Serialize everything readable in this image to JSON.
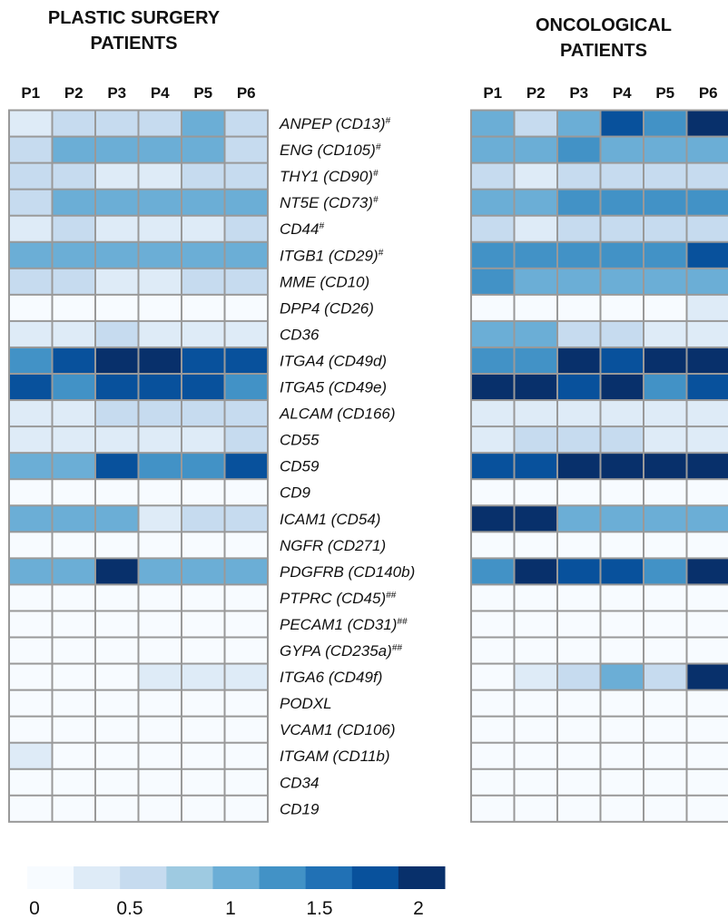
{
  "panels": [
    {
      "title_line1": "PLASTIC SURGERY",
      "title_line2": "PATIENTS"
    },
    {
      "title_line1": "ONCOLOGICAL",
      "title_line2": "PATIENTS"
    }
  ],
  "chart_data": [
    {
      "type": "heatmap",
      "title": "PLASTIC SURGERY PATIENTS",
      "columns": [
        "P1",
        "P2",
        "P3",
        "P4",
        "P5",
        "P6"
      ],
      "rows": [
        "ANPEP (CD13)",
        "ENG (CD105)",
        "THY1 (CD90)",
        "NT5E (CD73)",
        "CD44",
        "ITGB1 (CD29)",
        "MME (CD10)",
        "DPP4 (CD26)",
        "CD36",
        "ITGA4 (CD49d)",
        "ITGA5 (CD49e)",
        "ALCAM (CD166)",
        "CD55",
        "CD59",
        "CD9",
        "ICAM1 (CD54)",
        "NGFR (CD271)",
        "PDGFRB (CD140b)",
        "PTPRC (CD45)",
        "PECAM1 (CD31)",
        "GYPA (CD235a)",
        "ITGA6 (CD49f)",
        "PODXL",
        "VCAM1 (CD106)",
        "ITGAM (CD11b)",
        "CD34",
        "CD19"
      ],
      "row_superscripts": [
        "#",
        "#",
        "#",
        "#",
        "#",
        "#",
        "",
        "",
        "",
        "",
        "",
        "",
        "",
        "",
        "",
        "",
        "",
        "",
        "##",
        "##",
        "##",
        "",
        "",
        "",
        "",
        "",
        ""
      ],
      "values": [
        [
          0.3,
          0.6,
          0.6,
          0.6,
          0.9,
          0.6
        ],
        [
          0.6,
          1.1,
          1.1,
          1.1,
          0.9,
          0.6
        ],
        [
          0.6,
          0.6,
          0.3,
          0.3,
          0.6,
          0.6
        ],
        [
          0.6,
          0.9,
          1.1,
          0.9,
          1.1,
          0.9
        ],
        [
          0.3,
          0.6,
          0.3,
          0.3,
          0.3,
          0.6
        ],
        [
          0.9,
          1.1,
          1.1,
          1.1,
          1.1,
          1.1
        ],
        [
          0.6,
          0.6,
          0.3,
          0.3,
          0.6,
          0.6
        ],
        [
          0.1,
          0.1,
          0.1,
          0.1,
          0.1,
          0.1
        ],
        [
          0.3,
          0.3,
          0.6,
          0.3,
          0.3,
          0.3
        ],
        [
          1.3,
          1.6,
          2.0,
          1.8,
          1.6,
          1.6
        ],
        [
          1.6,
          1.3,
          1.6,
          1.6,
          1.6,
          1.3
        ],
        [
          0.3,
          0.3,
          0.6,
          0.6,
          0.6,
          0.6
        ],
        [
          0.3,
          0.3,
          0.3,
          0.3,
          0.3,
          0.6
        ],
        [
          1.1,
          1.1,
          1.6,
          1.3,
          1.3,
          1.6
        ],
        [
          0.1,
          0.1,
          0.1,
          0.1,
          0.1,
          0.1
        ],
        [
          1.1,
          0.9,
          0.9,
          0.3,
          0.6,
          0.6
        ],
        [
          0.1,
          0.1,
          0.1,
          0.1,
          0.1,
          0.1
        ],
        [
          1.1,
          1.1,
          1.8,
          1.1,
          1.1,
          1.1
        ],
        [
          0.1,
          0.1,
          0.1,
          0.1,
          0.1,
          0.1
        ],
        [
          0.1,
          0.1,
          0.1,
          0.1,
          0.1,
          0.1
        ],
        [
          0.1,
          0.1,
          0.1,
          0.1,
          0.1,
          0.1
        ],
        [
          0.1,
          0.1,
          0.1,
          0.3,
          0.3,
          0.3
        ],
        [
          0.1,
          0.1,
          0.1,
          0.1,
          0.1,
          0.1
        ],
        [
          0.1,
          0.1,
          0.1,
          0.1,
          0.1,
          0.1
        ],
        [
          0.3,
          0.1,
          0.1,
          0.1,
          0.1,
          0.1
        ],
        [
          0.1,
          0.1,
          0.1,
          0.1,
          0.1,
          0.1
        ],
        [
          0.1,
          0.1,
          0.1,
          0.1,
          0.1,
          0.1
        ]
      ]
    },
    {
      "type": "heatmap",
      "title": "ONCOLOGICAL PATIENTS",
      "columns": [
        "P1",
        "P2",
        "P3",
        "P4",
        "P5",
        "P6"
      ],
      "rows": [
        "ANPEP (CD13)",
        "ENG (CD105)",
        "THY1 (CD90)",
        "NT5E (CD73)",
        "CD44",
        "ITGB1 (CD29)",
        "MME (CD10)",
        "DPP4 (CD26)",
        "CD36",
        "ITGA4 (CD49d)",
        "ITGA5 (CD49e)",
        "ALCAM (CD166)",
        "CD55",
        "CD59",
        "CD9",
        "ICAM1 (CD54)",
        "NGFR (CD271)",
        "PDGFRB (CD140b)",
        "PTPRC (CD45)",
        "PECAM1 (CD31)",
        "GYPA (CD235a)",
        "ITGA6 (CD49f)",
        "PODXL",
        "VCAM1 (CD106)",
        "ITGAM (CD11b)",
        "CD34",
        "CD19"
      ],
      "values": [
        [
          0.9,
          0.6,
          1.1,
          1.6,
          1.3,
          1.8
        ],
        [
          0.9,
          0.9,
          1.3,
          1.1,
          0.9,
          1.1
        ],
        [
          0.6,
          0.3,
          0.6,
          0.6,
          0.6,
          0.6
        ],
        [
          1.1,
          1.1,
          1.3,
          1.3,
          1.3,
          1.3
        ],
        [
          0.6,
          0.3,
          0.6,
          0.6,
          0.6,
          0.6
        ],
        [
          1.3,
          1.3,
          1.3,
          1.3,
          1.3,
          1.6
        ],
        [
          1.3,
          0.9,
          0.9,
          0.9,
          0.9,
          0.9
        ],
        [
          0.1,
          0.1,
          0.1,
          0.1,
          0.1,
          0.3
        ],
        [
          1.1,
          0.9,
          0.6,
          0.6,
          0.3,
          0.3
        ],
        [
          1.3,
          1.3,
          2.0,
          1.6,
          1.8,
          1.8
        ],
        [
          1.8,
          2.0,
          1.6,
          2.0,
          1.3,
          1.6
        ],
        [
          0.3,
          0.3,
          0.3,
          0.3,
          0.3,
          0.3
        ],
        [
          0.3,
          0.6,
          0.6,
          0.6,
          0.3,
          0.3
        ],
        [
          1.6,
          1.6,
          2.0,
          2.0,
          1.8,
          2.0
        ],
        [
          0.1,
          0.1,
          0.1,
          0.1,
          0.1,
          0.1
        ],
        [
          2.0,
          1.8,
          1.1,
          0.9,
          0.9,
          0.9
        ],
        [
          0.1,
          0.1,
          0.1,
          0.1,
          0.1,
          0.1
        ],
        [
          1.3,
          1.8,
          1.6,
          1.6,
          1.3,
          1.8
        ],
        [
          0.1,
          0.1,
          0.1,
          0.1,
          0.1,
          0.1
        ],
        [
          0.1,
          0.1,
          0.1,
          0.1,
          0.1,
          0.1
        ],
        [
          0.1,
          0.1,
          0.1,
          0.1,
          0.1,
          0.1
        ],
        [
          0.1,
          0.3,
          0.6,
          1.1,
          0.6,
          1.8
        ],
        [
          0.1,
          0.1,
          0.1,
          0.1,
          0.1,
          0.1
        ],
        [
          0.1,
          0.1,
          0.1,
          0.1,
          0.1,
          0.1
        ],
        [
          0.1,
          0.1,
          0.1,
          0.1,
          0.1,
          0.1
        ],
        [
          0.1,
          0.1,
          0.1,
          0.1,
          0.1,
          0.1
        ],
        [
          0.1,
          0.1,
          0.1,
          0.1,
          0.1,
          0.1
        ]
      ]
    }
  ],
  "color_scale": {
    "min": 0,
    "max": 2,
    "tick_labels": [
      "0",
      "0.5",
      "1",
      "1.5",
      "2"
    ],
    "tick_values": [
      0,
      0.5,
      1,
      1.5,
      2
    ],
    "colors": [
      "#f7fbff",
      "#deebf7",
      "#c6dbef",
      "#9ecae1",
      "#6baed6",
      "#4292c6",
      "#2171b5",
      "#08519c",
      "#08306b"
    ]
  },
  "colors": {
    "cell_border": "#999999",
    "text": "#111111"
  }
}
